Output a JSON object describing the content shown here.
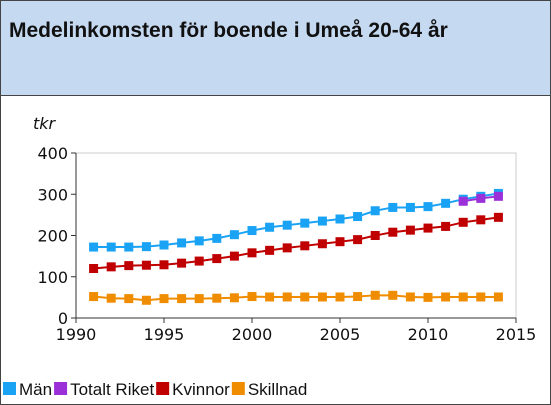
{
  "chart_data": {
    "type": "line",
    "title": "Medelinkomsten för boende i Umeå 20-64 år",
    "y_label": "tkr",
    "x": [
      1991,
      1992,
      1993,
      1994,
      1995,
      1996,
      1997,
      1998,
      1999,
      2000,
      2001,
      2002,
      2003,
      2004,
      2005,
      2006,
      2007,
      2008,
      2009,
      2010,
      2011,
      2012,
      2013,
      2014
    ],
    "series": [
      {
        "name": "Män",
        "color": "#1aa3f5",
        "values": [
          172,
          172,
          172,
          173,
          177,
          182,
          187,
          193,
          202,
          212,
          220,
          225,
          230,
          235,
          240,
          246,
          260,
          268,
          268,
          270,
          278,
          288,
          295,
          302
        ]
      },
      {
        "name": "Totalt Riket",
        "color": "#9b30d9",
        "values": [
          null,
          null,
          null,
          null,
          null,
          null,
          null,
          null,
          null,
          null,
          null,
          null,
          null,
          null,
          null,
          null,
          null,
          null,
          null,
          null,
          null,
          283,
          290,
          295
        ]
      },
      {
        "name": "Kvinnor",
        "color": "#c00000",
        "values": [
          120,
          124,
          127,
          128,
          129,
          133,
          138,
          144,
          150,
          158,
          164,
          170,
          175,
          180,
          185,
          190,
          200,
          208,
          213,
          218,
          222,
          232,
          238,
          244
        ]
      },
      {
        "name": "Skillnad",
        "color": "#f08c00",
        "values": [
          52,
          48,
          47,
          43,
          47,
          47,
          47,
          48,
          49,
          52,
          51,
          51,
          51,
          51,
          51,
          52,
          55,
          55,
          51,
          50,
          51,
          51,
          51,
          51
        ]
      }
    ],
    "xlim": [
      1990,
      2015
    ],
    "xticks": [
      1990,
      1995,
      2000,
      2005,
      2010,
      2015
    ],
    "ylim": [
      0,
      400
    ],
    "yticks": [
      0,
      100,
      200,
      300,
      400
    ]
  }
}
